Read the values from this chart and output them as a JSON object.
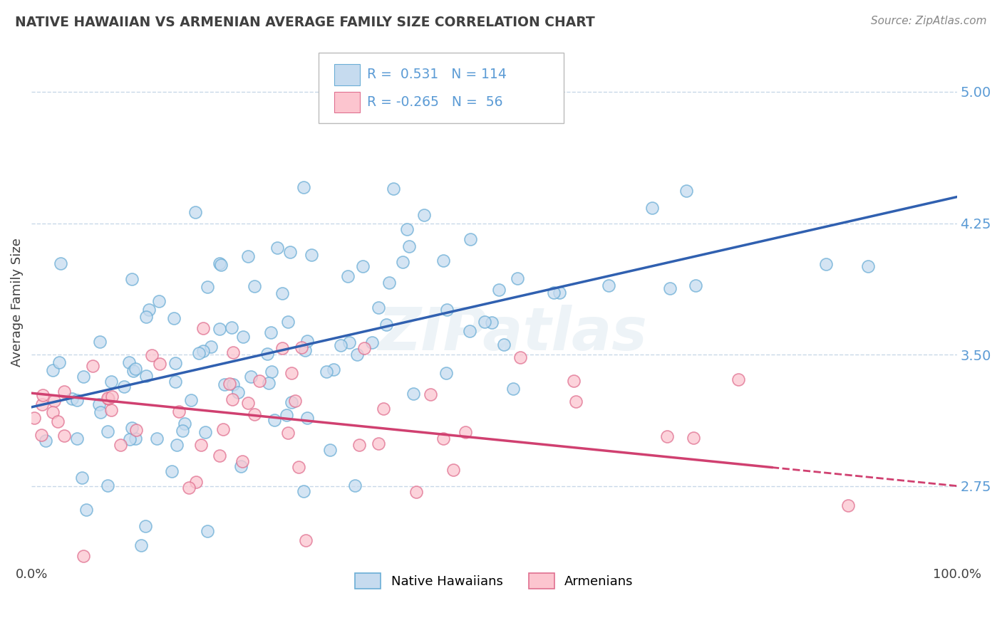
{
  "title": "NATIVE HAWAIIAN VS ARMENIAN AVERAGE FAMILY SIZE CORRELATION CHART",
  "source": "Source: ZipAtlas.com",
  "ylabel": "Average Family Size",
  "xlim": [
    0.0,
    100.0
  ],
  "ylim": [
    2.3,
    5.3
  ],
  "yticks": [
    2.75,
    3.5,
    4.25,
    5.0
  ],
  "xticks": [
    0.0,
    100.0
  ],
  "xticklabels": [
    "0.0%",
    "100.0%"
  ],
  "blue_R": 0.531,
  "blue_N": 114,
  "pink_R": -0.265,
  "pink_N": 56,
  "blue_edge": "#6baed6",
  "blue_face": "#c6dbef",
  "pink_edge": "#e07090",
  "pink_face": "#fcc5cf",
  "trend_blue": "#3060b0",
  "trend_pink": "#d04070",
  "watermark": "ZIPatlas",
  "legend_label1": "Native Hawaiians",
  "legend_label2": "Armenians",
  "title_color": "#404040",
  "axis_label_color": "#5b9bd5",
  "grid_color": "#c8d8e8",
  "blue_trend_start_y": 3.2,
  "blue_trend_end_y": 4.4,
  "pink_trend_start_y": 3.28,
  "pink_trend_end_y": 2.75,
  "pink_solid_end_x": 80,
  "pink_dashed_end_x": 100
}
